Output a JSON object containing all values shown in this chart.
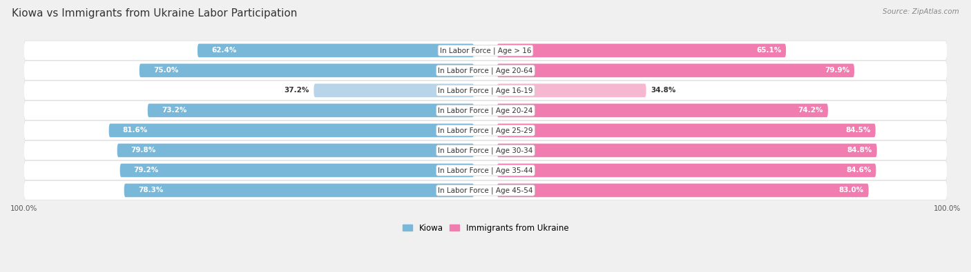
{
  "title": "Kiowa vs Immigrants from Ukraine Labor Participation",
  "source": "Source: ZipAtlas.com",
  "categories": [
    "In Labor Force | Age > 16",
    "In Labor Force | Age 20-64",
    "In Labor Force | Age 16-19",
    "In Labor Force | Age 20-24",
    "In Labor Force | Age 25-29",
    "In Labor Force | Age 30-34",
    "In Labor Force | Age 35-44",
    "In Labor Force | Age 45-54"
  ],
  "kiowa_values": [
    62.4,
    75.0,
    37.2,
    73.2,
    81.6,
    79.8,
    79.2,
    78.3
  ],
  "ukraine_values": [
    65.1,
    79.9,
    34.8,
    74.2,
    84.5,
    84.8,
    84.6,
    83.0
  ],
  "kiowa_color": "#7ab8d9",
  "kiowa_color_light": "#b8d4e8",
  "ukraine_color": "#f07cb0",
  "ukraine_color_light": "#f5b8d0",
  "bar_height": 0.68,
  "background_color": "#f0f0f0",
  "row_bg_color": "#ffffff",
  "title_fontsize": 11,
  "label_fontsize": 7.5,
  "value_fontsize": 7.5,
  "legend_fontsize": 8.5,
  "axis_label_fontsize": 7.5,
  "max_value": 100.0,
  "light_row_index": 2
}
